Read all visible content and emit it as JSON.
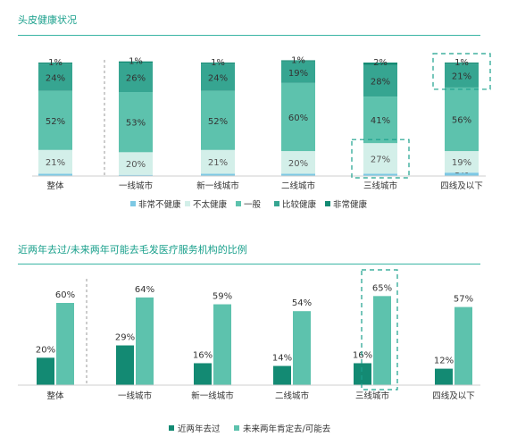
{
  "chart_data": [
    {
      "type": "bar",
      "title": "头皮健康状况",
      "stacked": true,
      "categories": [
        "整体",
        "一线城市",
        "新一线城市",
        "二线城市",
        "三线城市",
        "四线及以下"
      ],
      "series": [
        {
          "name": "非常不健康",
          "values": [
            2,
            1,
            2,
            2,
            2,
            3
          ],
          "labels": [
            "2%",
            "1%",
            "2%",
            "2%",
            "2%",
            "3%"
          ],
          "color": "#7dc8e4"
        },
        {
          "name": "不太健康",
          "values": [
            21,
            20,
            21,
            20,
            27,
            19
          ],
          "labels": [
            "21%",
            "20%",
            "21%",
            "20%",
            "27%",
            "19%"
          ],
          "color": "#d3efe9"
        },
        {
          "name": "一般",
          "values": [
            52,
            53,
            52,
            60,
            41,
            56
          ],
          "labels": [
            "52%",
            "53%",
            "52%",
            "60%",
            "41%",
            "56%"
          ],
          "color": "#5dc2ad"
        },
        {
          "name": "比较健康",
          "values": [
            24,
            26,
            24,
            19,
            28,
            21
          ],
          "labels": [
            "24%",
            "26%",
            "24%",
            "19%",
            "28%",
            "21%"
          ],
          "color": "#36a591"
        },
        {
          "name": "非常健康",
          "values": [
            1,
            1,
            1,
            1,
            2,
            1
          ],
          "labels": [
            "1%",
            "1%",
            "1%",
            "1%",
            "2%",
            "1%"
          ],
          "color": "#138a73"
        }
      ],
      "highlights": [
        {
          "category": "三线城市",
          "series": "不太健康"
        },
        {
          "category": "四线及以下",
          "series": "比较健康"
        }
      ],
      "legend_position": "bottom",
      "grid": false
    },
    {
      "type": "bar",
      "title": "近两年去过/未来两年可能去毛发医疗服务机构的比例",
      "categories": [
        "整体",
        "一线城市",
        "新一线城市",
        "二线城市",
        "三线城市",
        "四线及以下"
      ],
      "series": [
        {
          "name": "近两年去过",
          "values": [
            20,
            29,
            16,
            14,
            16,
            12
          ],
          "labels": [
            "20%",
            "29%",
            "16%",
            "14%",
            "16%",
            "12%"
          ],
          "color": "#138a73"
        },
        {
          "name": "未来两年肯定去/可能去",
          "values": [
            60,
            64,
            59,
            54,
            65,
            57
          ],
          "labels": [
            "60%",
            "64%",
            "59%",
            "54%",
            "65%",
            "57%"
          ],
          "color": "#5dc2ad"
        }
      ],
      "highlights": [
        {
          "category": "三线城市"
        }
      ],
      "legend_position": "bottom",
      "grid": false
    }
  ]
}
